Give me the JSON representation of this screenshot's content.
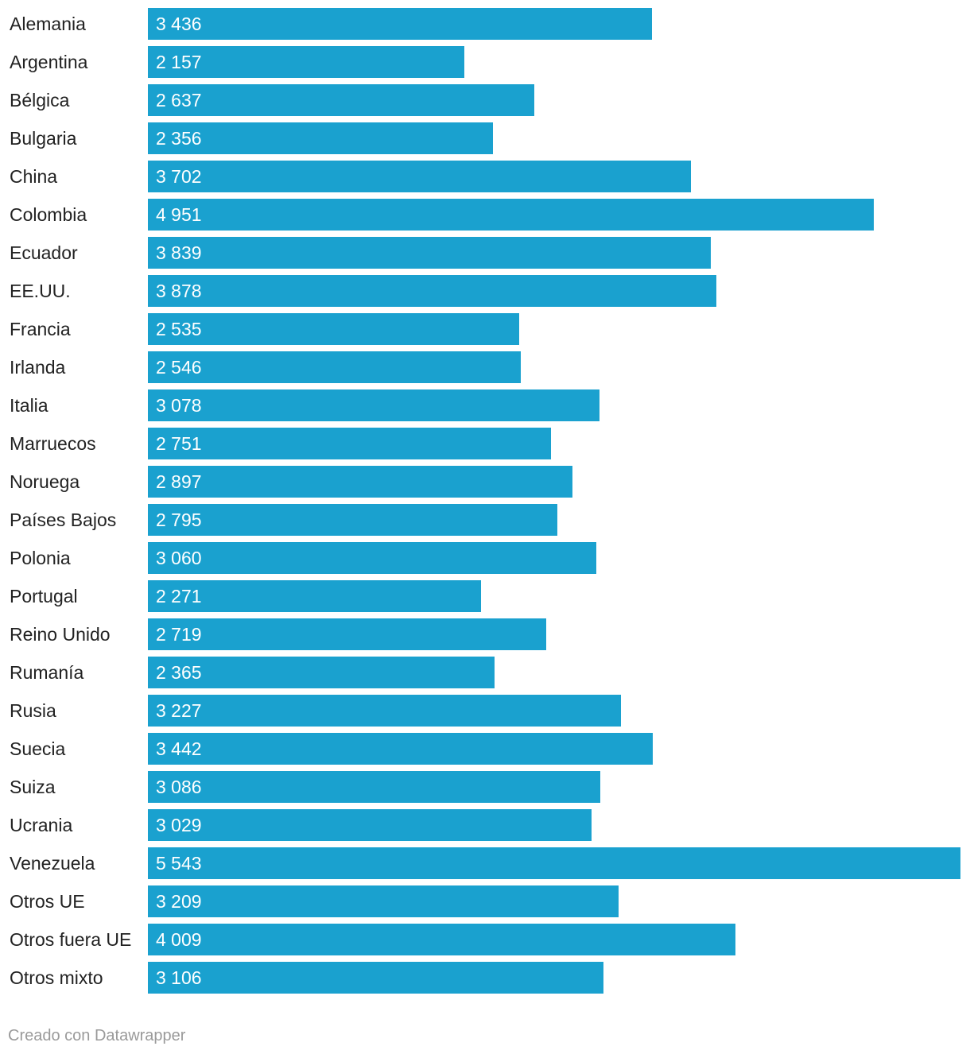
{
  "chart_data": {
    "type": "bar",
    "orientation": "horizontal",
    "title": "",
    "xlabel": "",
    "ylabel": "",
    "xlim": [
      0,
      5543
    ],
    "bar_color": "#1aa1cf",
    "categories": [
      "Alemania",
      "Argentina",
      "Bélgica",
      "Bulgaria",
      "China",
      "Colombia",
      "Ecuador",
      "EE.UU.",
      "Francia",
      "Irlanda",
      "Italia",
      "Marruecos",
      "Noruega",
      "Países Bajos",
      "Polonia",
      "Portugal",
      "Reino Unido",
      "Rumanía",
      "Rusia",
      "Suecia",
      "Suiza",
      "Ucrania",
      "Venezuela",
      "Otros UE",
      "Otros fuera UE",
      "Otros mixto"
    ],
    "values": [
      3436,
      2157,
      2637,
      2356,
      3702,
      4951,
      3839,
      3878,
      2535,
      2546,
      3078,
      2751,
      2897,
      2795,
      3060,
      2271,
      2719,
      2365,
      3227,
      3442,
      3086,
      3029,
      5543,
      3209,
      4009,
      3106
    ],
    "value_labels": [
      "3 436",
      "2 157",
      "2 637",
      "2 356",
      "3 702",
      "4 951",
      "3 839",
      "3 878",
      "2 535",
      "2 546",
      "3 078",
      "2 751",
      "2 897",
      "2 795",
      "3 060",
      "2 271",
      "2 719",
      "2 365",
      "3 227",
      "3 442",
      "3 086",
      "3 029",
      "5 543",
      "3 209",
      "4 009",
      "3 106"
    ]
  },
  "footer": {
    "credit": "Creado con Datawrapper"
  }
}
